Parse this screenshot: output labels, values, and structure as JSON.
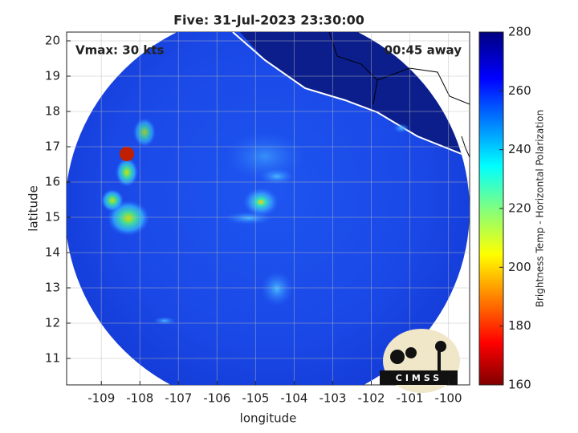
{
  "chart_data": {
    "type": "map",
    "title": "Five: 31-Jul-2023 23:30:00",
    "annotations": [
      "Vmax: 30 kts",
      "00:45 away"
    ],
    "x_label": "longitude",
    "y_label": "latitude",
    "xlim": [
      -109.9,
      -99.45
    ],
    "ylim": [
      10.25,
      20.25
    ],
    "xticks": [
      -109,
      -108,
      -107,
      -106,
      -105,
      -104,
      -103,
      -102,
      -101,
      -100
    ],
    "yticks": [
      11,
      12,
      13,
      14,
      15,
      16,
      17,
      18,
      19,
      20
    ],
    "grid": true,
    "colorbar": {
      "label": "Brightness Temp - Horizontal Polarization",
      "clim": [
        160,
        280
      ],
      "ticks": [
        160,
        180,
        200,
        220,
        240,
        260,
        280
      ],
      "colormap": "jet"
    },
    "logo": "CIMSS"
  }
}
